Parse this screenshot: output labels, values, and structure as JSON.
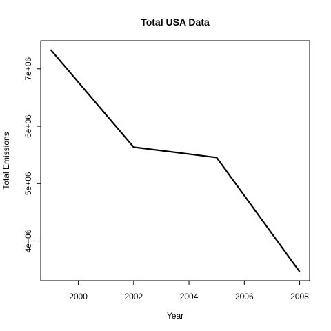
{
  "chart_data": {
    "type": "line",
    "title": "Total USA Data",
    "xlabel": "Year",
    "ylabel": "Total Emissions",
    "x": [
      1999,
      2002,
      2005,
      2008
    ],
    "series": [
      {
        "values": [
          7332967,
          5635780,
          5454703,
          3464206
        ]
      }
    ],
    "xlim": [
      1998.64,
      2008.36
    ],
    "ylim": [
      3310000,
      7490000
    ],
    "x_ticks": [
      2000,
      2002,
      2004,
      2006,
      2008
    ],
    "x_tick_labels": [
      "2000",
      "2002",
      "2004",
      "2006",
      "2008"
    ],
    "y_ticks": [
      4000000,
      5000000,
      6000000,
      7000000
    ],
    "y_tick_labels": [
      "4e+06",
      "5e+06",
      "6e+06",
      "7e+06"
    ],
    "grid": false,
    "line_color": "#000000"
  }
}
